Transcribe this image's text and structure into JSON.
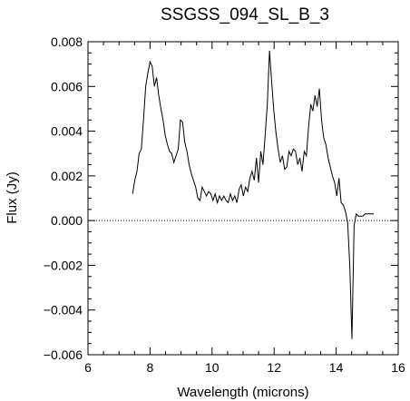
{
  "chart_data": {
    "type": "line",
    "title": "SSGSS_094_SL_B_3",
    "xlabel": "Wavelength (microns)",
    "ylabel": "Flux (Jy)",
    "xlim": [
      6,
      16
    ],
    "ylim": [
      -0.006,
      0.008
    ],
    "x_ticks": [
      6,
      8,
      10,
      12,
      14,
      16
    ],
    "x_tick_labels": [
      "6",
      "8",
      "10",
      "12",
      "14",
      "16"
    ],
    "y_ticks": [
      -0.006,
      -0.004,
      -0.002,
      0.0,
      0.002,
      0.004,
      0.006,
      0.008
    ],
    "y_tick_labels": [
      "−0.006",
      "−0.004",
      "−0.002",
      "0.000",
      "0.002",
      "0.004",
      "0.006",
      "0.008"
    ],
    "reference_line": {
      "y": 0.0,
      "style": "dotted"
    },
    "line_color": "#000000",
    "series": [
      {
        "x": [
          7.44,
          7.51,
          7.58,
          7.65,
          7.72,
          7.79,
          7.86,
          7.93,
          8.0,
          8.07,
          8.14,
          8.21,
          8.28,
          8.35,
          8.42,
          8.49,
          8.56,
          8.63,
          8.7,
          8.77,
          8.84,
          8.91,
          8.98,
          9.05,
          9.12,
          9.19,
          9.26,
          9.33,
          9.4,
          9.47,
          9.54,
          9.61,
          9.68,
          9.75,
          9.82,
          9.89,
          9.96,
          10.03,
          10.1,
          10.17,
          10.24,
          10.31,
          10.38,
          10.45,
          10.52,
          10.59,
          10.66,
          10.73,
          10.8,
          10.87,
          10.94,
          11.01,
          11.08,
          11.15,
          11.22,
          11.29,
          11.36,
          11.43,
          11.5,
          11.57,
          11.64,
          11.71,
          11.78,
          11.85,
          11.92,
          11.99,
          12.06,
          12.13,
          12.2,
          12.27,
          12.34,
          12.41,
          12.48,
          12.55,
          12.62,
          12.69,
          12.76,
          12.83,
          12.9,
          12.97,
          13.04,
          13.11,
          13.18,
          13.25,
          13.32,
          13.39,
          13.46,
          13.53,
          13.6,
          13.67,
          13.74,
          13.81,
          13.88,
          13.95,
          14.02,
          14.09,
          14.16,
          14.23,
          14.3,
          14.37,
          14.44,
          14.51,
          14.58,
          14.65,
          14.72,
          14.79,
          14.86,
          14.93,
          15.0,
          15.07,
          15.14,
          15.21
        ],
        "y": [
          0.0012,
          0.0018,
          0.0022,
          0.003,
          0.0032,
          0.0045,
          0.006,
          0.0066,
          0.0071,
          0.0069,
          0.006,
          0.0064,
          0.0056,
          0.005,
          0.0045,
          0.0038,
          0.0034,
          0.0031,
          0.003,
          0.0026,
          0.0029,
          0.0032,
          0.0045,
          0.0044,
          0.0035,
          0.0031,
          0.0025,
          0.0021,
          0.0018,
          0.0015,
          0.001,
          0.0009,
          0.0015,
          0.0013,
          0.0011,
          0.0013,
          0.0012,
          0.0009,
          0.0012,
          0.0008,
          0.0011,
          0.0009,
          0.0011,
          0.0009,
          0.0008,
          0.0012,
          0.0009,
          0.0011,
          0.0008,
          0.0014,
          0.0016,
          0.0011,
          0.0015,
          0.0013,
          0.0019,
          0.0022,
          0.0018,
          0.0028,
          0.0017,
          0.0031,
          0.0025,
          0.0038,
          0.0052,
          0.0076,
          0.0062,
          0.0049,
          0.0039,
          0.0032,
          0.0026,
          0.0029,
          0.0023,
          0.0024,
          0.0031,
          0.0029,
          0.0032,
          0.0031,
          0.0025,
          0.0028,
          0.0022,
          0.0031,
          0.0029,
          0.0042,
          0.0052,
          0.0049,
          0.0056,
          0.0051,
          0.0059,
          0.0045,
          0.0037,
          0.0034,
          0.0028,
          0.0024,
          0.002,
          0.0017,
          0.0011,
          0.0019,
          0.0008,
          0.0007,
          0.0004,
          -0.0001,
          -0.002,
          -0.0053,
          -0.0002,
          0.0003,
          0.0002,
          0.0002,
          0.0002,
          0.0003,
          0.0003,
          0.0003,
          0.0003,
          0.0003
        ]
      }
    ]
  }
}
